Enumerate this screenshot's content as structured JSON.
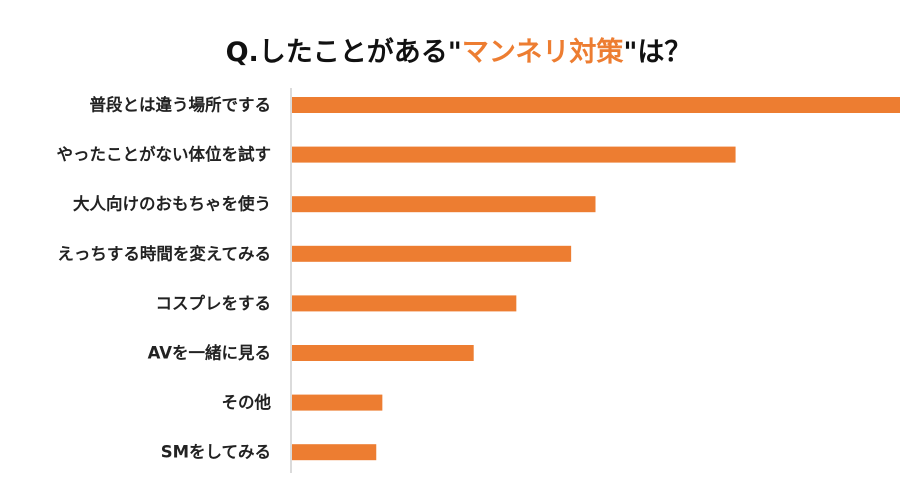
{
  "chart_data": {
    "type": "bar",
    "orientation": "horizontal",
    "title_prefix": "Q.したことがある\"",
    "title_highlight": "マンネリ対策",
    "title_suffix": "\"は？",
    "categories": [
      "普段とは違う場所でする",
      "やったことがない体位を試す",
      "大人向けのおもちゃを使う",
      "えっちする時間を変えてみる",
      "コスプレをする",
      "AVを一緒に見る",
      "その他",
      "SMをしてみる"
    ],
    "values": [
      100,
      73,
      50,
      46,
      37,
      30,
      15,
      14
    ],
    "xlim": [
      0,
      100
    ],
    "bar_color": "#ed7d31",
    "highlight_color": "#ed7d31",
    "grid": false,
    "legend": false
  }
}
